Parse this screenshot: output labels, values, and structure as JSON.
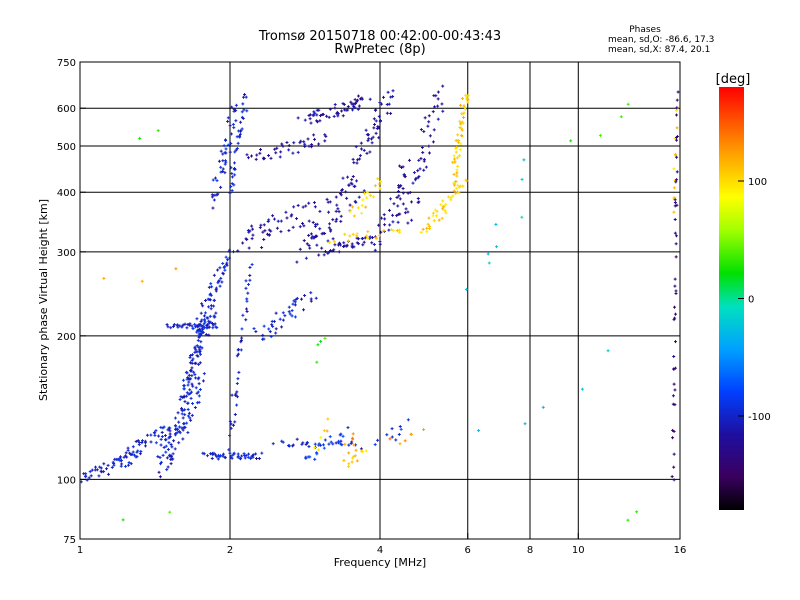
{
  "chart_data": {
    "type": "scatter",
    "title": "Tromsø 20150718 00:42:00-00:43:43",
    "subtitle": "RwPretec (8p)",
    "xlabel": "Frequency [MHz]",
    "ylabel": "Stationary phase Virtual Height [km]",
    "x_scale": "log",
    "y_scale": "log",
    "xlim": [
      1,
      16
    ],
    "ylim": [
      75,
      750
    ],
    "x_ticks": [
      1,
      2,
      4,
      6,
      8,
      10,
      16
    ],
    "x_tick_labels": [
      "1",
      "2",
      "4",
      "6",
      "8",
      "10",
      "16"
    ],
    "x_grid": [
      2,
      4,
      6,
      8,
      10
    ],
    "y_ticks": [
      75,
      100,
      200,
      300,
      400,
      500,
      600,
      750
    ],
    "y_tick_labels": [
      "75",
      "100",
      "200",
      "300",
      "400",
      "500",
      "600",
      "750"
    ],
    "y_grid": [
      100,
      200,
      300,
      400,
      500,
      600
    ],
    "grid": true,
    "phases_info": {
      "heading": "Phases",
      "line1": "mean, sd,O: -86.6, 17.3",
      "line2": "mean, sd,X:  87.4, 20.1"
    },
    "colorbar": {
      "label": "[deg]",
      "range": [
        -180,
        180
      ],
      "ticks": [
        100,
        0,
        -100
      ],
      "tick_labels": [
        "100",
        "0",
        "-100"
      ]
    },
    "series": [
      {
        "phase": -100,
        "segments": [
          {
            "x0": 1.0,
            "x1": 1.3,
            "y0": 100,
            "y1": 112,
            "n": 45,
            "jx": 0.02,
            "jy": 0.03
          },
          {
            "x0": 1.2,
            "x1": 1.6,
            "y0": 112,
            "y1": 130,
            "n": 55,
            "jx": 0.02,
            "jy": 0.04
          },
          {
            "x0": 1.45,
            "x1": 1.75,
            "y0": 105,
            "y1": 160,
            "n": 90,
            "jx": 0.03,
            "jy": 0.06
          },
          {
            "x0": 1.6,
            "x1": 1.85,
            "y0": 150,
            "y1": 230,
            "n": 90,
            "jx": 0.02,
            "jy": 0.05
          },
          {
            "x0": 1.7,
            "x1": 2.0,
            "y0": 200,
            "y1": 300,
            "n": 60,
            "jx": 0.02,
            "jy": 0.04
          },
          {
            "x0": 1.8,
            "x1": 2.3,
            "y0": 112,
            "y1": 112,
            "n": 45,
            "jx": 0.02,
            "jy": 0.015
          },
          {
            "x0": 1.5,
            "x1": 1.9,
            "y0": 210,
            "y1": 210,
            "n": 35,
            "jx": 0.02,
            "jy": 0.01
          },
          {
            "x0": 1.85,
            "x1": 2.05,
            "y0": 380,
            "y1": 600,
            "n": 45,
            "jx": 0.02,
            "jy": 0.04
          },
          {
            "x0": 2.0,
            "x1": 2.15,
            "y0": 400,
            "y1": 640,
            "n": 35,
            "jx": 0.01,
            "jy": 0.05
          },
          {
            "x0": 2.0,
            "x1": 2.2,
            "y0": 120,
            "y1": 280,
            "n": 40,
            "jx": 0.01,
            "jy": 0.06
          },
          {
            "x0": 2.3,
            "x1": 2.9,
            "y0": 200,
            "y1": 240,
            "n": 40,
            "jx": 0.03,
            "jy": 0.04
          },
          {
            "x0": 2.5,
            "x1": 3.6,
            "y0": 120,
            "y1": 118,
            "n": 30,
            "jx": 0.03,
            "jy": 0.02
          }
        ]
      },
      {
        "phase": -120,
        "segments": [
          {
            "x0": 2.1,
            "x1": 2.9,
            "y0": 310,
            "y1": 370,
            "n": 50,
            "jx": 0.05,
            "jy": 0.05
          },
          {
            "x0": 2.2,
            "x1": 3.1,
            "y0": 470,
            "y1": 520,
            "n": 40,
            "jx": 0.03,
            "jy": 0.03
          },
          {
            "x0": 2.8,
            "x1": 3.8,
            "y0": 570,
            "y1": 620,
            "n": 55,
            "jx": 0.04,
            "jy": 0.03
          },
          {
            "x0": 2.8,
            "x1": 3.6,
            "y0": 300,
            "y1": 420,
            "n": 70,
            "jx": 0.05,
            "jy": 0.06
          },
          {
            "x0": 3.1,
            "x1": 3.9,
            "y0": 300,
            "y1": 320,
            "n": 40,
            "jx": 0.03,
            "jy": 0.02
          },
          {
            "x0": 3.6,
            "x1": 4.2,
            "y0": 460,
            "y1": 640,
            "n": 45,
            "jx": 0.03,
            "jy": 0.03
          },
          {
            "x0": 4.0,
            "x1": 4.6,
            "y0": 310,
            "y1": 460,
            "n": 40,
            "jx": 0.03,
            "jy": 0.06
          },
          {
            "x0": 4.5,
            "x1": 5.3,
            "y0": 350,
            "y1": 650,
            "n": 50,
            "jx": 0.03,
            "jy": 0.06
          }
        ]
      },
      {
        "phase": 105,
        "segments": [
          {
            "x0": 4.9,
            "x1": 5.9,
            "y0": 330,
            "y1": 420,
            "n": 40,
            "jx": 0.02,
            "jy": 0.02
          },
          {
            "x0": 5.6,
            "x1": 5.95,
            "y0": 420,
            "y1": 650,
            "n": 55,
            "jx": 0.015,
            "jy": 0.03
          },
          {
            "x0": 3.2,
            "x1": 4.5,
            "y0": 320,
            "y1": 330,
            "n": 20,
            "jx": 0.03,
            "jy": 0.02
          },
          {
            "x0": 3.5,
            "x1": 4.0,
            "y0": 360,
            "y1": 420,
            "n": 18,
            "jx": 0.03,
            "jy": 0.03
          },
          {
            "x0": 3.4,
            "x1": 3.7,
            "y0": 108,
            "y1": 115,
            "n": 12,
            "jx": 0.02,
            "jy": 0.02
          },
          {
            "x0": 3.0,
            "x1": 3.2,
            "y0": 115,
            "y1": 130,
            "n": 6,
            "jx": 0.02,
            "jy": 0.03
          },
          {
            "x0": 15.5,
            "x1": 15.8,
            "y0": 350,
            "y1": 600,
            "n": 12,
            "jx": 0.005,
            "jy": 0.06
          }
        ]
      },
      {
        "phase": -140,
        "segments": [
          {
            "x0": 15.5,
            "x1": 15.8,
            "y0": 100,
            "y1": 640,
            "n": 45,
            "jx": 0.005,
            "jy": 0.08
          }
        ]
      },
      {
        "phase": -85,
        "segments": [
          {
            "x0": 2.8,
            "x1": 3.4,
            "y0": 110,
            "y1": 125,
            "n": 18,
            "jx": 0.03,
            "jy": 0.03
          },
          {
            "x0": 3.9,
            "x1": 4.6,
            "y0": 120,
            "y1": 130,
            "n": 10,
            "jx": 0.03,
            "jy": 0.03
          }
        ]
      },
      {
        "phase": 130,
        "segments": [
          {
            "x0": 3.4,
            "x1": 3.6,
            "y0": 115,
            "y1": 125,
            "n": 6,
            "jx": 0.02,
            "jy": 0.02
          },
          {
            "x0": 4.2,
            "x1": 4.8,
            "y0": 120,
            "y1": 125,
            "n": 6,
            "jx": 0.02,
            "jy": 0.02
          },
          {
            "x0": 1.1,
            "x1": 1.6,
            "y0": 260,
            "y1": 280,
            "n": 3,
            "jx": 0.04,
            "jy": 0.04
          }
        ]
      },
      {
        "phase": 30,
        "segments": [
          {
            "x0": 1.3,
            "x1": 1.45,
            "y0": 520,
            "y1": 540,
            "n": 2,
            "jx": 0.02,
            "jy": 0.01
          },
          {
            "x0": 1.2,
            "x1": 1.5,
            "y0": 82,
            "y1": 85,
            "n": 2,
            "jx": 0.02,
            "jy": 0.01
          },
          {
            "x0": 3.0,
            "x1": 3.1,
            "y0": 180,
            "y1": 200,
            "n": 4,
            "jx": 0.01,
            "jy": 0.03
          },
          {
            "x0": 10.0,
            "x1": 13.0,
            "y0": 520,
            "y1": 600,
            "n": 4,
            "jx": 0.05,
            "jy": 0.04
          },
          {
            "x0": 12.5,
            "x1": 13.2,
            "y0": 82,
            "y1": 85,
            "n": 2,
            "jx": 0.01,
            "jy": 0.01
          }
        ]
      },
      {
        "phase": -20,
        "segments": [
          {
            "x0": 6.2,
            "x1": 8.0,
            "y0": 250,
            "y1": 450,
            "n": 8,
            "jx": 0.05,
            "jy": 0.08
          },
          {
            "x0": 6.5,
            "x1": 12.0,
            "y0": 120,
            "y1": 180,
            "n": 5,
            "jx": 0.05,
            "jy": 0.06
          }
        ]
      }
    ]
  }
}
